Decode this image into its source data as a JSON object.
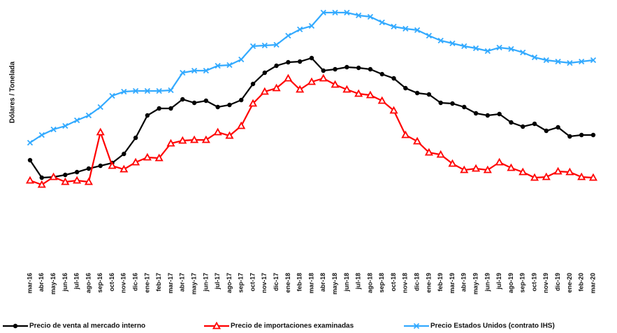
{
  "chart_data": {
    "type": "line",
    "y_label": "Dólares / Tonelada",
    "categories": [
      "mar-16",
      "abr-16",
      "may-16",
      "jun-16",
      "jul-16",
      "ago-16",
      "sep-16",
      "oct-16",
      "nov-16",
      "dic-16",
      "ene-17",
      "feb-17",
      "mar-17",
      "abr-17",
      "may-17",
      "jun-17",
      "jul-17",
      "ago-17",
      "sep-17",
      "oct-17",
      "nov-17",
      "dic-17",
      "ene-18",
      "feb-18",
      "mar-18",
      "abr-18",
      "may-18",
      "jun-18",
      "jul-18",
      "ago-18",
      "sep-18",
      "oct-18",
      "nov-18",
      "dic-18",
      "ene-19",
      "feb-19",
      "mar-19",
      "abr-19",
      "may-19",
      "jun-19",
      "jul-19",
      "ago-19",
      "sep-19",
      "oct-19",
      "nov-19",
      "dic-19",
      "ene-20",
      "feb-20",
      "mar-20"
    ],
    "ylim": [
      0,
      300
    ],
    "series": [
      {
        "name": "Precio de venta al mercado interno",
        "color": "#000000",
        "marker": "circle",
        "values": [
          71,
          46,
          47,
          50,
          54,
          59,
          63,
          67,
          80,
          103,
          135,
          145,
          145,
          158,
          153,
          156,
          147,
          150,
          157,
          180,
          196,
          206,
          211,
          212,
          217,
          199,
          201,
          204,
          203,
          201,
          194,
          188,
          174,
          167,
          165,
          153,
          152,
          147,
          138,
          135,
          137,
          125,
          119,
          123,
          113,
          118,
          105,
          107,
          107
        ]
      },
      {
        "name": "Precio de importaciones examinadas",
        "color": "#ff0000",
        "marker": "triangle",
        "values": [
          42,
          36,
          47,
          40,
          42,
          40,
          111,
          63,
          58,
          68,
          75,
          74,
          95,
          99,
          100,
          100,
          111,
          106,
          120,
          152,
          169,
          174,
          188,
          172,
          183,
          188,
          179,
          172,
          166,
          164,
          156,
          142,
          107,
          98,
          82,
          79,
          66,
          57,
          59,
          57,
          68,
          60,
          54,
          46,
          47,
          55,
          54,
          47,
          46
        ]
      },
      {
        "name": "Precio Estados Unidos (contrato IHS)",
        "color": "#33aaff",
        "marker": "x",
        "values": [
          96,
          107,
          115,
          120,
          128,
          135,
          147,
          163,
          169,
          170,
          170,
          170,
          171,
          196,
          199,
          199,
          206,
          207,
          215,
          234,
          235,
          236,
          249,
          258,
          263,
          282,
          282,
          282,
          278,
          276,
          268,
          262,
          259,
          257,
          249,
          242,
          238,
          234,
          231,
          227,
          232,
          230,
          225,
          218,
          214,
          212,
          210,
          212,
          214
        ]
      }
    ]
  }
}
